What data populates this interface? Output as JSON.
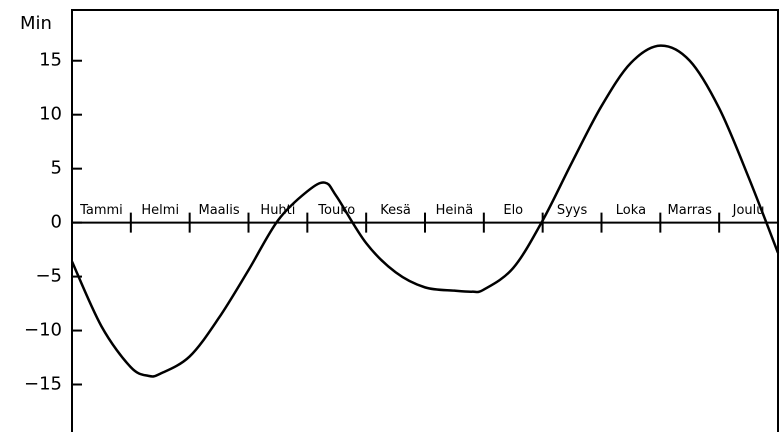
{
  "chart_data": {
    "type": "line",
    "y_label": "Min",
    "categories": [
      "Tammi",
      "Helmi",
      "Maalis",
      "Huhti",
      "Touko",
      "Kesä",
      "Heinä",
      "Elo",
      "Syys",
      "Loka",
      "Marras",
      "Joulu"
    ],
    "x": [
      0,
      0.5,
      1,
      1.3,
      1.5,
      2,
      2.5,
      3,
      3.5,
      4,
      4.3,
      4.5,
      5,
      5.5,
      6,
      6.5,
      6.8,
      7,
      7.5,
      8,
      8.5,
      9,
      9.5,
      10,
      10.5,
      11,
      11.5,
      12
    ],
    "xlim": [
      0,
      12
    ],
    "series": [
      {
        "color": "#000000",
        "values": [
          -3.6,
          -9.6,
          -13.4,
          -14.2,
          -14.0,
          -12.4,
          -8.8,
          -4.4,
          0.2,
          2.9,
          3.7,
          2.4,
          -1.9,
          -4.6,
          -6.0,
          -6.3,
          -6.4,
          -6.2,
          -4.2,
          0.2,
          5.6,
          10.8,
          14.8,
          16.4,
          15.0,
          10.6,
          4.2,
          -2.8
        ]
      }
    ],
    "ylim": [
      -19.4,
      19.7
    ],
    "yticks": [
      {
        "value": -15,
        "label": "−15"
      },
      {
        "value": -10,
        "label": "−10"
      },
      {
        "value": -5,
        "label": "−5"
      },
      0,
      5,
      10,
      15
    ]
  }
}
